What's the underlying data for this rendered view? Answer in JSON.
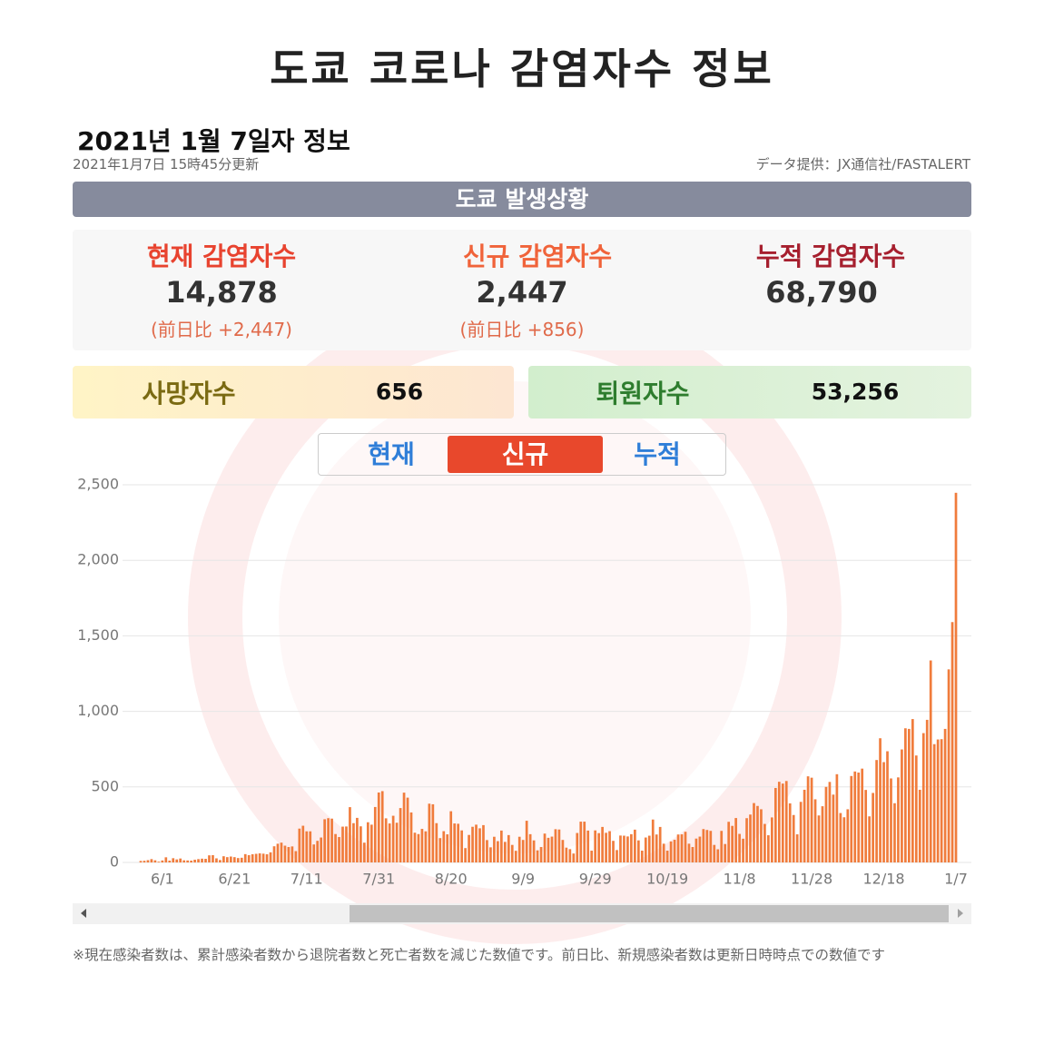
{
  "header": {
    "title": "도쿄 코로나 감염자수 정보",
    "date_heading": "2021년 1월 7일자 정보",
    "updated": "2021年1月7日 15時45分更新",
    "source": "データ提供：JX通信社/FASTALERT"
  },
  "section_title": "도쿄 발생상황",
  "stats": [
    {
      "label": "현재 감염자수",
      "value": "14,878",
      "change": "(前日比 +2,447)"
    },
    {
      "label": "신규 감염자수",
      "value": "2,447",
      "change": "(前日比 +856)"
    },
    {
      "label": "누적 감염자수",
      "value": "68,790"
    }
  ],
  "deaths": {
    "label": "사망자수",
    "value": "656"
  },
  "recovered": {
    "label": "퇴원자수",
    "value": "53,256"
  },
  "tabs": [
    "현재",
    "신규",
    "누적"
  ],
  "active_tab": 1,
  "chart_data": {
    "type": "bar",
    "color": "#f07c3c",
    "grid": true,
    "ylim": [
      0,
      2500
    ],
    "yticks": [
      0,
      500,
      {
        "value": 1000,
        "label": "1,000"
      },
      {
        "value": 1500,
        "label": "1,500"
      },
      {
        "value": 2000,
        "label": "2,000"
      },
      {
        "value": 2500,
        "label": "2,500"
      }
    ],
    "categories": [
      null,
      null,
      null,
      null,
      null,
      null,
      "6/1",
      null,
      null,
      null,
      null,
      null,
      null,
      null,
      null,
      null,
      null,
      null,
      null,
      null,
      null,
      null,
      null,
      null,
      null,
      null,
      "6/21",
      null,
      null,
      null,
      null,
      null,
      null,
      null,
      null,
      null,
      null,
      null,
      null,
      null,
      null,
      null,
      null,
      null,
      null,
      null,
      "7/11",
      null,
      null,
      null,
      null,
      null,
      null,
      null,
      null,
      null,
      null,
      null,
      null,
      null,
      null,
      null,
      null,
      null,
      null,
      null,
      "7/31",
      null,
      null,
      null,
      null,
      null,
      null,
      null,
      null,
      null,
      null,
      null,
      null,
      null,
      null,
      null,
      null,
      null,
      null,
      null,
      "8/20",
      null,
      null,
      null,
      null,
      null,
      null,
      null,
      null,
      null,
      null,
      null,
      null,
      null,
      null,
      null,
      null,
      null,
      null,
      null,
      "9/9",
      null,
      null,
      null,
      null,
      null,
      null,
      null,
      null,
      null,
      null,
      null,
      null,
      null,
      null,
      null,
      null,
      null,
      null,
      null,
      "9/29",
      null,
      null,
      null,
      null,
      null,
      null,
      null,
      null,
      null,
      null,
      null,
      null,
      null,
      null,
      null,
      null,
      null,
      null,
      null,
      "10/19",
      null,
      null,
      null,
      null,
      null,
      null,
      null,
      null,
      null,
      null,
      null,
      null,
      null,
      null,
      null,
      null,
      null,
      null,
      null,
      "11/8",
      null,
      null,
      null,
      null,
      null,
      null,
      null,
      null,
      null,
      null,
      null,
      null,
      null,
      null,
      null,
      null,
      null,
      null,
      null,
      "11/28",
      null,
      null,
      null,
      null,
      null,
      null,
      null,
      null,
      null,
      null,
      null,
      null,
      null,
      null,
      null,
      null,
      null,
      null,
      null,
      "12/18",
      null,
      null,
      null,
      null,
      null,
      null,
      null,
      null,
      null,
      null,
      null,
      null,
      null,
      null,
      null,
      null,
      null,
      null,
      null,
      "1/7"
    ],
    "values": [
      10,
      11,
      15,
      22,
      14,
      5,
      13,
      34,
      12,
      28,
      20,
      26,
      14,
      13,
      12,
      18,
      22,
      25,
      24,
      47,
      48,
      27,
      16,
      41,
      35,
      39,
      35,
      29,
      31,
      55,
      48,
      54,
      57,
      60,
      58,
      54,
      67,
      107,
      124,
      131,
      111,
      102,
      106,
      75,
      224,
      243,
      206,
      206,
      119,
      143,
      165,
      286,
      293,
      290,
      188,
      168,
      237,
      238,
      366,
      260,
      295,
      239,
      131,
      266,
      250,
      367,
      463,
      472,
      292,
      258,
      309,
      263,
      360,
      462,
      429,
      331,
      197,
      188,
      222,
      206,
      389,
      385,
      260,
      161,
      207,
      186,
      339,
      258,
      256,
      212,
      95,
      182,
      236,
      250,
      226,
      247,
      148,
      100,
      170,
      141,
      211,
      136,
      181,
      116,
      77,
      170,
      149,
      276,
      187,
      146,
      80,
      102,
      191,
      163,
      171,
      220,
      218,
      149,
      98,
      88,
      59,
      195,
      270,
      270,
      211,
      78,
      212,
      194,
      235,
      196,
      207,
      143,
      82,
      178,
      177,
      172,
      187,
      217,
      146,
      78,
      165,
      177,
      284,
      185,
      235,
      124,
      78,
      139,
      150,
      185,
      186,
      203,
      124,
      102,
      158,
      171,
      221,
      215,
      209,
      116,
      87,
      209,
      122,
      269,
      242,
      294,
      189,
      157,
      293,
      317,
      393,
      374,
      352,
      255,
      180,
      298,
      493,
      534,
      522,
      539,
      391,
      314,
      186,
      401,
      481,
      570,
      561,
      418,
      311,
      372,
      500,
      533,
      449,
      584,
      327,
      299,
      352,
      572,
      602,
      595,
      621,
      480,
      305,
      460,
      678,
      822,
      664,
      736,
      556,
      392,
      563,
      748,
      888,
      884,
      949,
      708,
      481,
      856,
      944,
      1337,
      783,
      814,
      816,
      884,
      1278,
      1591,
      2447
    ]
  },
  "footnote": "※現在感染者数は、累計感染者数から退院者数と死亡者数を減じた数値です。前日比、新規感染者数は更新日時時点での数値です"
}
